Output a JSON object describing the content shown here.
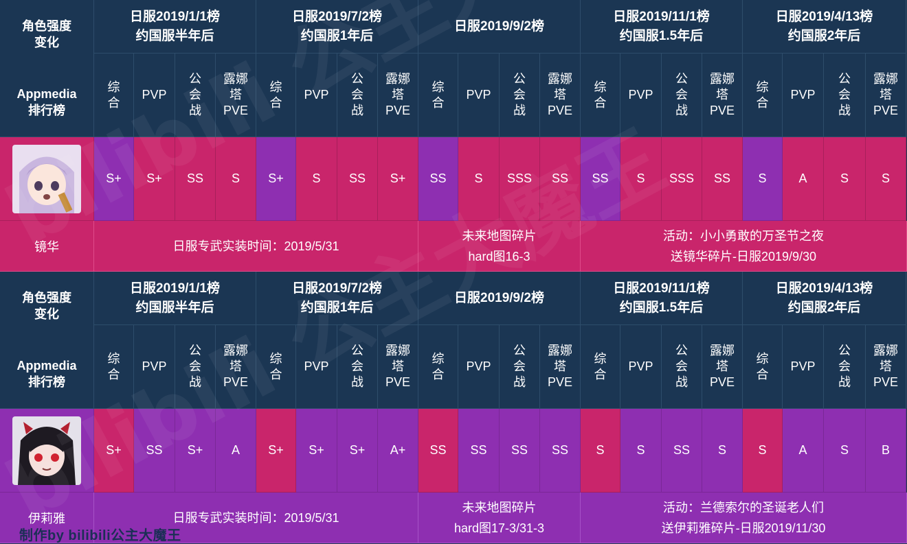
{
  "header": {
    "left_title": "角色强度变化",
    "left_source": "Appmedia排行榜",
    "groups": [
      {
        "line1": "日服2019/1/1榜",
        "line2": "约国服半年后"
      },
      {
        "line1": "日服2019/7/2榜",
        "line2": "约国服1年后"
      },
      {
        "line1": "日服2019/9/2榜",
        "line2": ""
      },
      {
        "line1": "日服2019/11/1榜",
        "line2": "约国服1.5年后"
      },
      {
        "line1": "日服2019/4/13榜",
        "line2": "约国服2年后"
      }
    ],
    "subcols": [
      "综合",
      "PVP",
      "公会战",
      "露娜塔PVE"
    ]
  },
  "characters": [
    {
      "name": "镜华",
      "avatar_icon": "kyouka-portrait-icon",
      "ratings": [
        "S+",
        "S+",
        "SS",
        "S",
        "S+",
        "S",
        "SS",
        "S+",
        "SS",
        "S",
        "SSS",
        "SS",
        "SS",
        "S",
        "SSS",
        "SS",
        "S",
        "A",
        "S",
        "S"
      ],
      "rating_colors": [
        "purple",
        "pink",
        "pink",
        "pink",
        "purple",
        "pink",
        "pink",
        "pink",
        "purple",
        "pink",
        "pink",
        "pink",
        "purple",
        "pink",
        "pink",
        "pink",
        "purple",
        "pink",
        "pink",
        "pink"
      ],
      "info": {
        "weapon": "日服专武实装时间：2019/5/31",
        "shard_line1": "未来地图碎片",
        "shard_line2": "hard图16-3",
        "event_line1": "活动：小小勇敢的万圣节之夜",
        "event_line2": "送镜华碎片-日服2019/9/30"
      }
    },
    {
      "name": "伊莉雅",
      "avatar_icon": "ilya-portrait-icon",
      "ratings": [
        "S+",
        "SS",
        "S+",
        "A",
        "S+",
        "S+",
        "S+",
        "A+",
        "SS",
        "SS",
        "SS",
        "SS",
        "S",
        "S",
        "SS",
        "S",
        "S",
        "A",
        "S",
        "B"
      ],
      "rating_colors": [
        "pink",
        "purple",
        "purple",
        "purple",
        "pink",
        "purple",
        "purple",
        "purple",
        "pink",
        "purple",
        "purple",
        "purple",
        "pink",
        "purple",
        "purple",
        "purple",
        "pink",
        "purple",
        "purple",
        "purple"
      ],
      "info": {
        "weapon": "日服专武实装时间：2019/5/31",
        "shard_line1": "未来地图碎片",
        "shard_line2": "hard图17-3/31-3",
        "event_line1": "活动：兰德索尔的圣诞老人们",
        "event_line2": "送伊莉雅碎片-日服2019/11/30"
      }
    }
  ],
  "credit": "制作by bilibili公主大魔王",
  "watermark": "bilibili 公主大魔王",
  "colors": {
    "header_bg": "#1b3653",
    "pink": "#c9256b",
    "purple": "#8e2fb1"
  }
}
